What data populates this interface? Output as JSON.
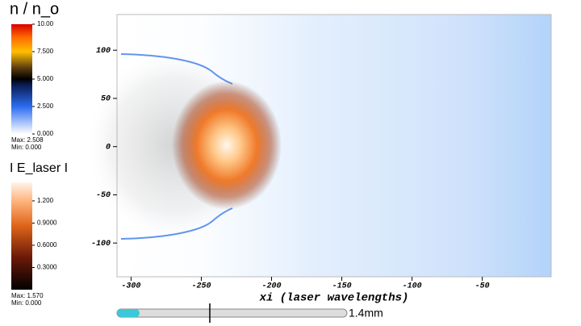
{
  "chart_data": {
    "type": "field",
    "xlabel": "xi (laser wavelengths)",
    "xlim": [
      -310,
      -1
    ],
    "xticks": [
      -300,
      -250,
      -200,
      -150,
      -100,
      -50
    ],
    "ylim": [
      -135,
      137
    ],
    "yticks": [
      -100,
      -50,
      0,
      50,
      100
    ]
  },
  "colorbars": [
    {
      "title": "n / n_o",
      "range": [
        0,
        10
      ],
      "ticks": [
        {
          "value": 0,
          "label": "0.000"
        },
        {
          "value": 2.5,
          "label": "2.500"
        },
        {
          "value": 5,
          "label": "5.000"
        },
        {
          "value": 7.5,
          "label": "7.500"
        },
        {
          "value": 10,
          "label": "10.00"
        }
      ],
      "max": "Max:  2.508",
      "min": "Min:  0.000"
    },
    {
      "title": "I E_laser I",
      "range": [
        0,
        1.45
      ],
      "ticks": [
        {
          "value": 0.3,
          "label": "0.3000"
        },
        {
          "value": 0.6,
          "label": "0.6000"
        },
        {
          "value": 0.9,
          "label": "0.9000"
        },
        {
          "value": 1.2,
          "label": "1.200"
        }
      ],
      "max": "Max:  1.570",
      "min": "Min:  0.000"
    }
  ],
  "time_slider": {
    "label": "1.4mm"
  }
}
